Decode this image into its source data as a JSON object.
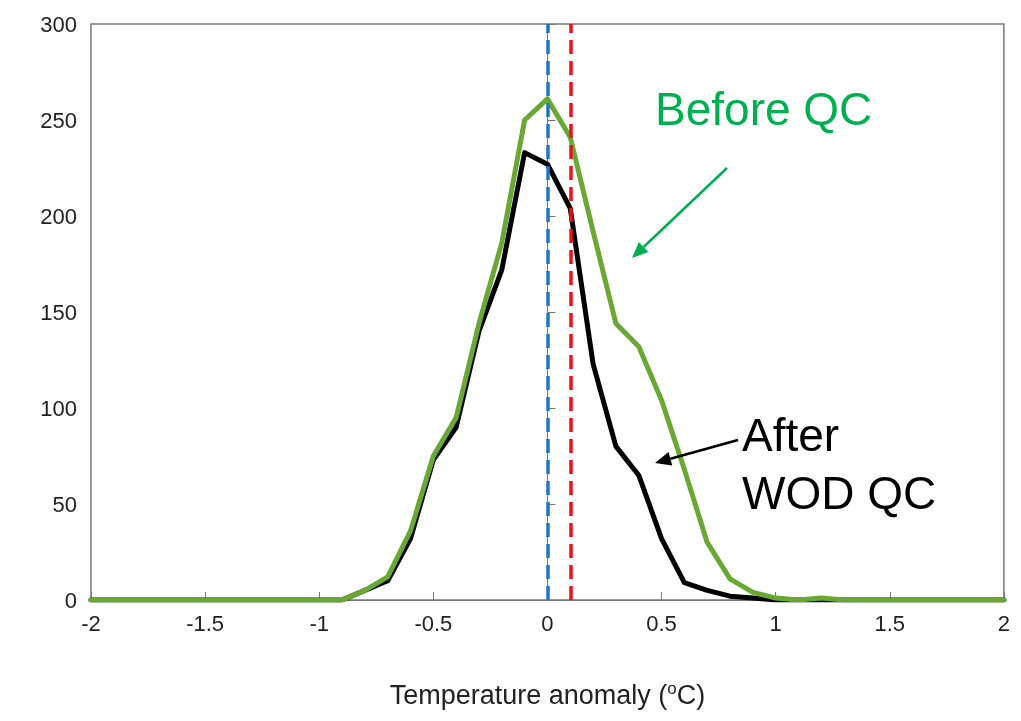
{
  "chart_data": {
    "type": "line",
    "xlabel": "Temperature anomaly ($^{o}$C)",
    "x": [
      -2,
      -1.9,
      -1.8,
      -1.7,
      -1.6,
      -1.5,
      -1.4,
      -1.3,
      -1.2,
      -1.1,
      -1,
      -0.9,
      -0.8,
      -0.7,
      -0.6,
      -0.5,
      -0.4,
      -0.3,
      -0.2,
      -0.1,
      0,
      0.1,
      0.2,
      0.3,
      0.4,
      0.5,
      0.6,
      0.7,
      0.8,
      0.9,
      1,
      1.1,
      1.2,
      1.3,
      1.4,
      1.5,
      1.6,
      1.7,
      1.8,
      1.9,
      2
    ],
    "series": [
      {
        "color": "#000000",
        "values": [
          0,
          0,
          0,
          0,
          0,
          0,
          0,
          0,
          0,
          0,
          0,
          0,
          5,
          10,
          32,
          73,
          90,
          140,
          172,
          233,
          227,
          204,
          123,
          80,
          65,
          32,
          9,
          5,
          2,
          1,
          0,
          0,
          0,
          0,
          0,
          0,
          0,
          0,
          0,
          0,
          0
        ]
      },
      {
        "color": "#6aa834",
        "values": [
          0,
          0,
          0,
          0,
          0,
          0,
          0,
          0,
          0,
          0,
          0,
          0,
          5,
          12,
          36,
          75,
          95,
          144,
          186,
          250,
          261,
          241,
          192,
          144,
          132,
          104,
          68,
          30,
          11,
          4,
          1,
          0,
          1,
          0,
          0,
          0,
          0,
          0,
          0,
          0,
          0
        ]
      }
    ],
    "annotations": [
      "Before QC",
      "After\nWOD QC"
    ],
    "ref_lines": [
      {
        "axis": "x",
        "value": 0,
        "color": "#1f77c4",
        "line_style": "dashed"
      },
      {
        "axis": "x",
        "value": 0.1,
        "color": "#e8141c",
        "line_style": "dashed"
      }
    ],
    "xlim": [
      -2,
      2
    ],
    "xticks": [
      -2,
      -1.5,
      -1,
      -0.5,
      0,
      0.5,
      1,
      1.5,
      2
    ],
    "ylim": [
      0,
      300
    ],
    "yticks": [
      0,
      50,
      100,
      150,
      200,
      250,
      300
    ],
    "marker": "none",
    "line_style": "solid"
  }
}
